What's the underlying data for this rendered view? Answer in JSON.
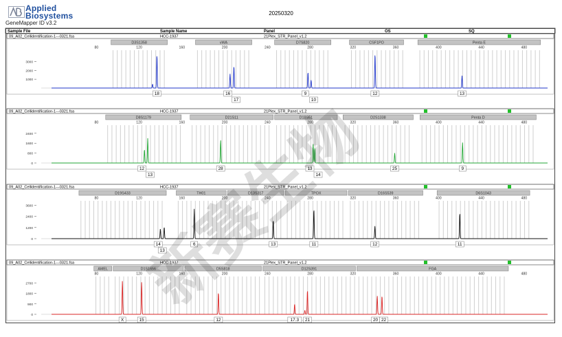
{
  "header": {
    "brand_line1": "Applied",
    "brand_line2": "Biosystems",
    "app_name": "GeneMapper ID v3.2",
    "date": "20250320"
  },
  "table_header": {
    "sample_file": "Sample File",
    "sample_name": "Sample Name",
    "panel": "Panel",
    "os": "OS",
    "sq": "SQ"
  },
  "watermark": "新赛生物",
  "chart_data": [
    {
      "type": "line",
      "sample_file": "09_A02_Cellidentification-1---0321.fsa",
      "sample_name": "HCC-1937",
      "panel": "21Plex_STR_Panel_v1.2",
      "color": "#1f35c9",
      "x_range": [
        38,
        502
      ],
      "x_ticks": [
        80,
        120,
        160,
        200,
        240,
        280,
        320,
        360,
        400,
        440,
        480
      ],
      "y_range": [
        0,
        4200
      ],
      "y_ticks": [
        1000,
        2000,
        3000
      ],
      "markers": [
        {
          "name": "D3S1358",
          "start": 93,
          "end": 147
        },
        {
          "name": "vWA",
          "start": 172,
          "end": 226
        },
        {
          "name": "D7S820",
          "start": 246,
          "end": 300
        },
        {
          "name": "CSF1PO",
          "start": 316,
          "end": 368
        },
        {
          "name": "Penta E",
          "start": 380,
          "end": 496
        }
      ],
      "peaks": [
        {
          "x": 136.6,
          "h": 3800
        },
        {
          "x": 132.5,
          "h": 450
        },
        {
          "x": 205.0,
          "h": 1600
        },
        {
          "x": 208.6,
          "h": 2500
        },
        {
          "x": 277.9,
          "h": 1800
        },
        {
          "x": 280.8,
          "h": 900
        },
        {
          "x": 340.6,
          "h": 3900
        },
        {
          "x": 422.0,
          "h": 1400
        }
      ],
      "alleles": [
        {
          "labels": [
            "18"
          ],
          "x": 136.6
        },
        {
          "labels": [
            "16",
            "17"
          ],
          "x": 206.8
        },
        {
          "labels": [
            "9",
            "10"
          ],
          "x": 279.3
        },
        {
          "labels": [
            "12"
          ],
          "x": 340.6
        },
        {
          "labels": [
            "13"
          ],
          "x": 422.0
        }
      ]
    },
    {
      "type": "line",
      "sample_file": "09_A02_Cellidentification-1---0321.fsa",
      "sample_name": "HCC-1937",
      "panel": "21Plex_STR_Panel_v1.2",
      "color": "#22a635",
      "x_range": [
        38,
        502
      ],
      "x_ticks": [
        80,
        120,
        160,
        200,
        240,
        280,
        320,
        360,
        400,
        440,
        480
      ],
      "y_range": [
        0,
        3000
      ],
      "y_ticks": [
        0,
        800,
        1600,
        2400
      ],
      "markers": [
        {
          "name": "D8S1179",
          "start": 88,
          "end": 160
        },
        {
          "name": "D21S11",
          "start": 167,
          "end": 246
        },
        {
          "name": "D18S51",
          "start": 246,
          "end": 306
        },
        {
          "name": "D2S1338",
          "start": 310,
          "end": 377
        },
        {
          "name": "Penta D",
          "start": 382,
          "end": 492
        }
      ],
      "peaks": [
        {
          "x": 124.9,
          "h": 1100
        },
        {
          "x": 128.0,
          "h": 2000
        },
        {
          "x": 196.2,
          "h": 1850
        },
        {
          "x": 282.7,
          "h": 1550
        },
        {
          "x": 284.3,
          "h": 1200
        },
        {
          "x": 359.0,
          "h": 800
        },
        {
          "x": 422.5,
          "h": 1650
        }
      ],
      "alleles": [
        {
          "labels": [
            "12",
            "13"
          ],
          "x": 126.4
        },
        {
          "labels": [
            "28"
          ],
          "x": 196.2
        },
        {
          "labels": [
            "13",
            "14"
          ],
          "x": 283.5
        },
        {
          "labels": [
            "25"
          ],
          "x": 359.0
        },
        {
          "labels": [
            "9"
          ],
          "x": 422.5
        }
      ]
    },
    {
      "type": "line",
      "sample_file": "09_A02_Cellidentification-1---0321.fsa",
      "sample_name": "HCC-1937",
      "panel": "21Plex_STR_Panel_v1.2",
      "color": "#111111",
      "x_range": [
        38,
        502
      ],
      "x_ticks": [
        80,
        120,
        160,
        200,
        240,
        280,
        320,
        360,
        400,
        440,
        480
      ],
      "y_range": [
        0,
        4000
      ],
      "y_ticks": [
        0,
        1200,
        2400,
        3600
      ],
      "markers": [
        {
          "name": "D19S433",
          "start": 63,
          "end": 146
        },
        {
          "name": "TH01",
          "start": 154,
          "end": 202
        },
        {
          "name": "D13S317",
          "start": 202,
          "end": 256
        },
        {
          "name": "TPOX",
          "start": 256,
          "end": 315
        },
        {
          "name": "D16S539",
          "start": 315,
          "end": 386
        },
        {
          "name": "D6S1043",
          "start": 398,
          "end": 486
        }
      ],
      "peaks": [
        {
          "x": 139.8,
          "h": 1050
        },
        {
          "x": 143.4,
          "h": 1250
        },
        {
          "x": 171.5,
          "h": 3200
        },
        {
          "x": 245.4,
          "h": 2000
        },
        {
          "x": 283.4,
          "h": 3200
        },
        {
          "x": 340.5,
          "h": 1350
        },
        {
          "x": 419.9,
          "h": 2800
        }
      ],
      "alleles": [
        {
          "labels": [
            "14",
            "13"
          ],
          "x": 141.6
        },
        {
          "labels": [
            "6"
          ],
          "x": 171.5
        },
        {
          "labels": [
            "13"
          ],
          "x": 245.4
        },
        {
          "labels": [
            "11"
          ],
          "x": 283.4
        },
        {
          "labels": [
            "12"
          ],
          "x": 340.5
        },
        {
          "labels": [
            "11"
          ],
          "x": 419.9
        }
      ]
    },
    {
      "type": "line",
      "sample_file": "09_A02_Cellidentification-1---0321.fsa",
      "sample_name": "HCC-1937",
      "panel": "21Plex_STR_Panel_v1.2",
      "color": "#d92424",
      "x_range": [
        38,
        502
      ],
      "x_ticks": [
        80,
        120,
        160,
        200,
        240,
        280,
        320,
        360,
        400,
        440,
        480
      ],
      "y_range": [
        0,
        3200
      ],
      "y_ticks": [
        0,
        900,
        1800,
        2700
      ],
      "markers": [
        {
          "name": "AMEL",
          "start": 77,
          "end": 95
        },
        {
          "name": "D1S1656",
          "start": 95,
          "end": 162
        },
        {
          "name": "D5S818",
          "start": 162,
          "end": 235
        },
        {
          "name": "D12S391",
          "start": 235,
          "end": 323
        },
        {
          "name": "FGA",
          "start": 323,
          "end": 466
        }
      ],
      "peaks": [
        {
          "x": 104.3,
          "h": 2900
        },
        {
          "x": 122.3,
          "h": 2800
        },
        {
          "x": 194.1,
          "h": 1900
        },
        {
          "x": 265.4,
          "h": 900
        },
        {
          "x": 277.4,
          "h": 2100
        },
        {
          "x": 275.0,
          "h": 350
        },
        {
          "x": 342.7,
          "h": 1600
        },
        {
          "x": 347.1,
          "h": 1600
        }
      ],
      "alleles": [
        {
          "labels": [
            "X"
          ],
          "x": 104.3
        },
        {
          "labels": [
            "15"
          ],
          "x": 122.3
        },
        {
          "labels": [
            "12"
          ],
          "x": 194.1
        },
        {
          "labels": [
            "17.3"
          ],
          "x": 265.4
        },
        {
          "labels": [
            "21"
          ],
          "x": 277.4
        },
        {
          "labels": [
            "20",
            "22"
          ],
          "x": 344.9
        }
      ]
    }
  ]
}
